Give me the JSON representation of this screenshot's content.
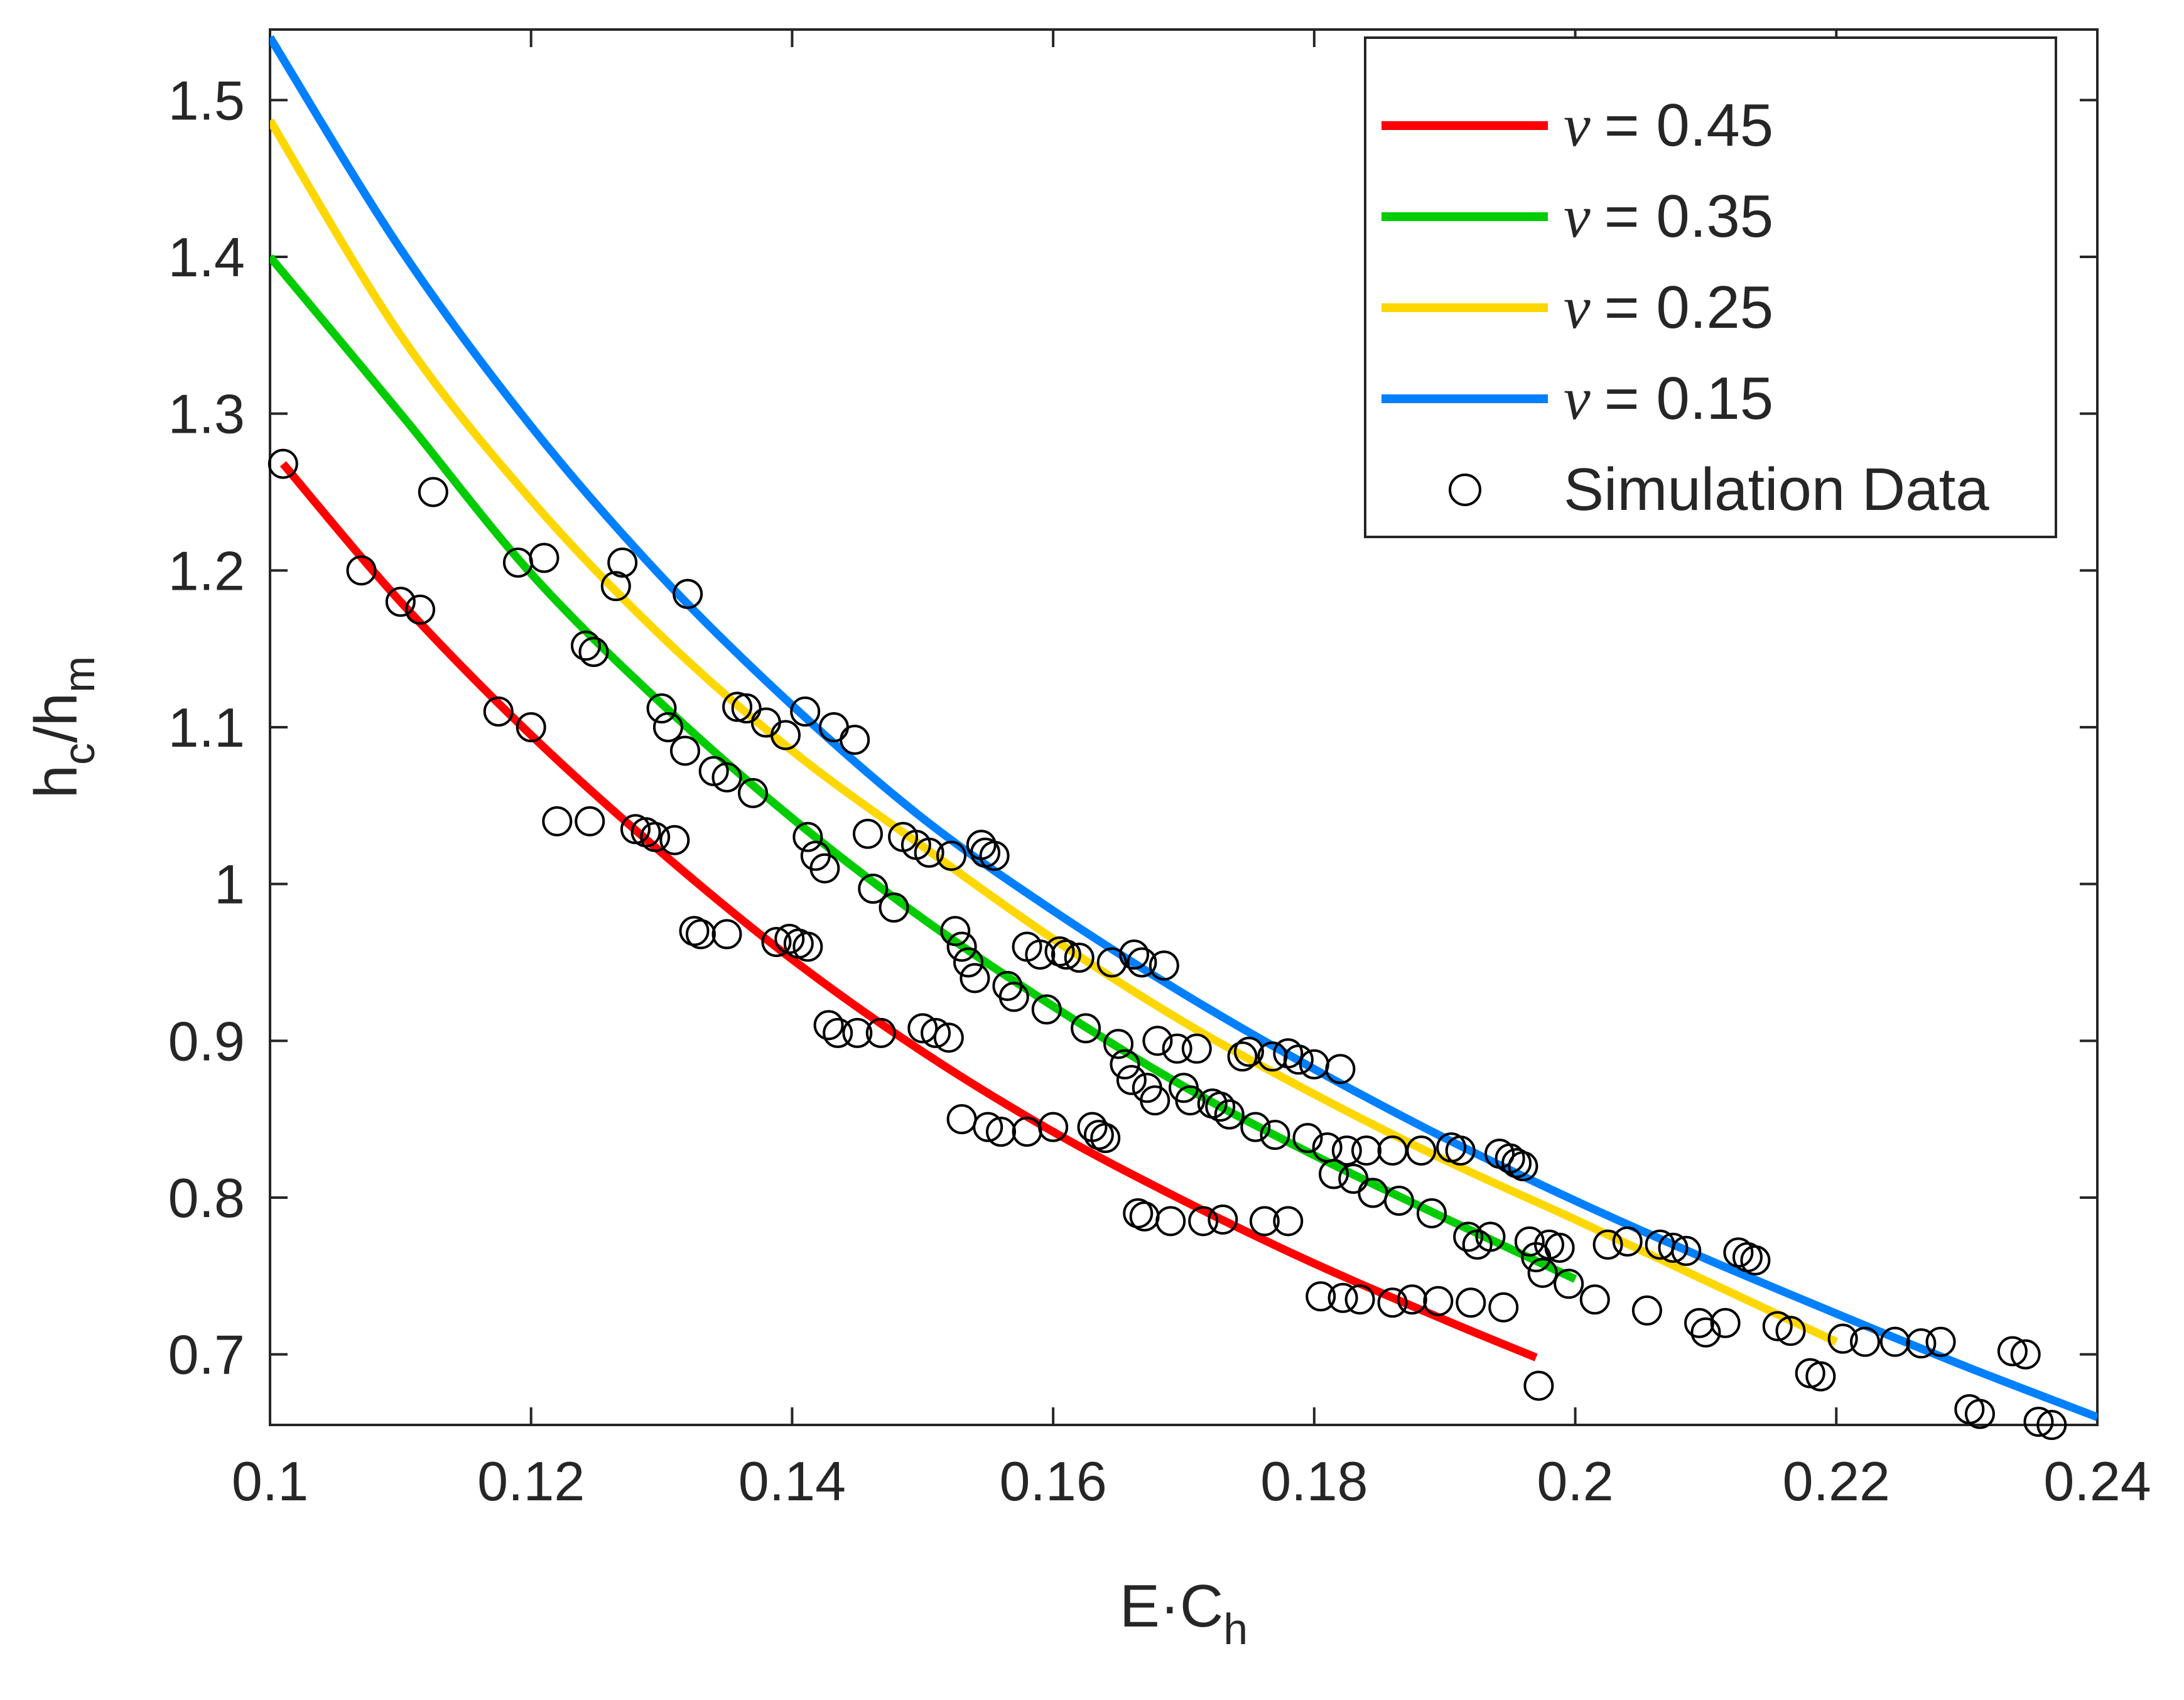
{
  "chart_data": {
    "type": "line",
    "title": "",
    "xlabel": "E·C",
    "xlabel_sub": "h",
    "ylabel_parts": [
      "h",
      "c",
      "/h",
      "m"
    ],
    "xlim": [
      0.1,
      0.24
    ],
    "ylim": [
      0.655,
      1.545
    ],
    "xticks": [
      0.1,
      0.12,
      0.14,
      0.16,
      0.18,
      0.2,
      0.22,
      0.24
    ],
    "xtick_labels": [
      "0.1",
      "0.12",
      "0.14",
      "0.16",
      "0.18",
      "0.2",
      "0.22",
      "0.24"
    ],
    "yticks": [
      0.7,
      0.8,
      0.9,
      1.0,
      1.1,
      1.2,
      1.3,
      1.4,
      1.5
    ],
    "ytick_labels": [
      "0.7",
      "0.8",
      "0.9",
      "1",
      "1.1",
      "1.2",
      "1.3",
      "1.4",
      "1.5"
    ],
    "grid": false,
    "legend_position": "top-right",
    "series": [
      {
        "name": "ν = 0.45",
        "symbol": "ν",
        "value_text": "= 0.45",
        "color": "#ff0000",
        "x": [
          0.101,
          0.11,
          0.12,
          0.13,
          0.14,
          0.15,
          0.16,
          0.17,
          0.18,
          0.19,
          0.197
        ],
        "y": [
          1.268,
          1.18,
          1.095,
          1.02,
          0.952,
          0.893,
          0.842,
          0.798,
          0.758,
          0.722,
          0.698
        ]
      },
      {
        "name": "ν = 0.35",
        "symbol": "ν",
        "value_text": "= 0.35",
        "color": "#00cc00",
        "x": [
          0.1,
          0.11,
          0.12,
          0.13,
          0.14,
          0.15,
          0.16,
          0.17,
          0.18,
          0.19,
          0.2
        ],
        "y": [
          1.4,
          1.3,
          1.198,
          1.115,
          1.042,
          0.978,
          0.922,
          0.871,
          0.827,
          0.787,
          0.748
        ]
      },
      {
        "name": "ν = 0.25",
        "symbol": "ν",
        "value_text": "= 0.25",
        "color": "#ffd700",
        "x": [
          0.1,
          0.11,
          0.12,
          0.13,
          0.14,
          0.15,
          0.16,
          0.17,
          0.18,
          0.19,
          0.2,
          0.21,
          0.22
        ],
        "y": [
          1.487,
          1.35,
          1.245,
          1.158,
          1.085,
          1.024,
          0.965,
          0.912,
          0.866,
          0.824,
          0.786,
          0.747,
          0.708
        ]
      },
      {
        "name": "ν = 0.15",
        "symbol": "ν",
        "value_text": "= 0.15",
        "color": "#0080ff",
        "x": [
          0.1,
          0.11,
          0.12,
          0.13,
          0.14,
          0.15,
          0.16,
          0.17,
          0.18,
          0.19,
          0.2,
          0.21,
          0.22,
          0.23,
          0.24
        ],
        "y": [
          1.54,
          1.405,
          1.292,
          1.196,
          1.114,
          1.042,
          0.983,
          0.93,
          0.882,
          0.838,
          0.798,
          0.761,
          0.726,
          0.692,
          0.66
        ]
      }
    ],
    "scatter": {
      "name": "Simulation Data",
      "marker": "open-circle",
      "color": "#000000",
      "points": [
        [
          0.101,
          1.268
        ],
        [
          0.107,
          1.2
        ],
        [
          0.11,
          1.18
        ],
        [
          0.1115,
          1.175
        ],
        [
          0.1125,
          1.25
        ],
        [
          0.1175,
          1.11
        ],
        [
          0.119,
          1.205
        ],
        [
          0.12,
          1.1
        ],
        [
          0.121,
          1.208
        ],
        [
          0.122,
          1.04
        ],
        [
          0.1242,
          1.152
        ],
        [
          0.1248,
          1.148
        ],
        [
          0.1245,
          1.04
        ],
        [
          0.1265,
          1.19
        ],
        [
          0.127,
          1.205
        ],
        [
          0.128,
          1.035
        ],
        [
          0.1288,
          1.033
        ],
        [
          0.1295,
          1.03
        ],
        [
          0.13,
          1.112
        ],
        [
          0.1305,
          1.1
        ],
        [
          0.131,
          1.028
        ],
        [
          0.1318,
          1.085
        ],
        [
          0.132,
          1.185
        ],
        [
          0.1325,
          0.97
        ],
        [
          0.133,
          0.968
        ],
        [
          0.134,
          1.072
        ],
        [
          0.135,
          0.968
        ],
        [
          0.135,
          1.068
        ],
        [
          0.1358,
          1.113
        ],
        [
          0.1365,
          1.112
        ],
        [
          0.137,
          1.058
        ],
        [
          0.138,
          1.103
        ],
        [
          0.1388,
          0.963
        ],
        [
          0.1395,
          1.095
        ],
        [
          0.1398,
          0.965
        ],
        [
          0.1405,
          0.962
        ],
        [
          0.141,
          1.11
        ],
        [
          0.1412,
          1.03
        ],
        [
          0.1418,
          1.018
        ],
        [
          0.1412,
          0.96
        ],
        [
          0.1425,
          1.01
        ],
        [
          0.1432,
          1.1
        ],
        [
          0.1428,
          0.91
        ],
        [
          0.1435,
          0.905
        ],
        [
          0.1448,
          1.092
        ],
        [
          0.145,
          0.905
        ],
        [
          0.1458,
          1.032
        ],
        [
          0.1462,
          0.997
        ],
        [
          0.1468,
          0.905
        ],
        [
          0.1478,
          0.985
        ],
        [
          0.1485,
          1.03
        ],
        [
          0.1495,
          1.025
        ],
        [
          0.15,
          0.908
        ],
        [
          0.1505,
          1.02
        ],
        [
          0.151,
          0.905
        ],
        [
          0.152,
          0.902
        ],
        [
          0.1522,
          1.018
        ],
        [
          0.1525,
          0.97
        ],
        [
          0.153,
          0.96
        ],
        [
          0.1535,
          0.95
        ],
        [
          0.154,
          0.94
        ],
        [
          0.1545,
          1.025
        ],
        [
          0.1548,
          1.02
        ],
        [
          0.153,
          0.85
        ],
        [
          0.155,
          0.845
        ],
        [
          0.1555,
          1.018
        ],
        [
          0.156,
          0.842
        ],
        [
          0.1565,
          0.935
        ],
        [
          0.157,
          0.928
        ],
        [
          0.158,
          0.96
        ],
        [
          0.158,
          0.842
        ],
        [
          0.159,
          0.955
        ],
        [
          0.1595,
          0.92
        ],
        [
          0.16,
          0.845
        ],
        [
          0.1605,
          0.957
        ],
        [
          0.161,
          0.955
        ],
        [
          0.162,
          0.953
        ],
        [
          0.1625,
          0.908
        ],
        [
          0.163,
          0.845
        ],
        [
          0.1635,
          0.84
        ],
        [
          0.164,
          0.838
        ],
        [
          0.1645,
          0.95
        ],
        [
          0.165,
          0.898
        ],
        [
          0.1655,
          0.885
        ],
        [
          0.166,
          0.875
        ],
        [
          0.1662,
          0.955
        ],
        [
          0.1668,
          0.95
        ],
        [
          0.1665,
          0.79
        ],
        [
          0.167,
          0.788
        ],
        [
          0.1672,
          0.87
        ],
        [
          0.1678,
          0.862
        ],
        [
          0.168,
          0.9
        ],
        [
          0.1685,
          0.948
        ],
        [
          0.169,
          0.785
        ],
        [
          0.1695,
          0.895
        ],
        [
          0.17,
          0.87
        ],
        [
          0.1705,
          0.862
        ],
        [
          0.171,
          0.895
        ],
        [
          0.1715,
          0.785
        ],
        [
          0.1722,
          0.86
        ],
        [
          0.1728,
          0.858
        ],
        [
          0.173,
          0.786
        ],
        [
          0.1735,
          0.853
        ],
        [
          0.1745,
          0.89
        ],
        [
          0.175,
          0.893
        ],
        [
          0.1755,
          0.845
        ],
        [
          0.1762,
          0.785
        ],
        [
          0.1768,
          0.89
        ],
        [
          0.177,
          0.84
        ],
        [
          0.178,
          0.785
        ],
        [
          0.178,
          0.892
        ],
        [
          0.1788,
          0.888
        ],
        [
          0.1795,
          0.838
        ],
        [
          0.18,
          0.885
        ],
        [
          0.1805,
          0.737
        ],
        [
          0.181,
          0.832
        ],
        [
          0.1815,
          0.815
        ],
        [
          0.182,
          0.882
        ],
        [
          0.1822,
          0.736
        ],
        [
          0.1825,
          0.83
        ],
        [
          0.183,
          0.812
        ],
        [
          0.1835,
          0.735
        ],
        [
          0.184,
          0.83
        ],
        [
          0.1845,
          0.803
        ],
        [
          0.186,
          0.733
        ],
        [
          0.186,
          0.83
        ],
        [
          0.1865,
          0.798
        ],
        [
          0.1875,
          0.735
        ],
        [
          0.1882,
          0.83
        ],
        [
          0.189,
          0.79
        ],
        [
          0.1895,
          0.734
        ],
        [
          0.1905,
          0.832
        ],
        [
          0.1912,
          0.83
        ],
        [
          0.1918,
          0.775
        ],
        [
          0.192,
          0.733
        ],
        [
          0.1925,
          0.77
        ],
        [
          0.1935,
          0.775
        ],
        [
          0.1942,
          0.828
        ],
        [
          0.1945,
          0.73
        ],
        [
          0.195,
          0.825
        ],
        [
          0.1955,
          0.822
        ],
        [
          0.196,
          0.82
        ],
        [
          0.1965,
          0.772
        ],
        [
          0.197,
          0.762
        ],
        [
          0.1972,
          0.68
        ],
        [
          0.1975,
          0.752
        ],
        [
          0.198,
          0.77
        ],
        [
          0.1988,
          0.768
        ],
        [
          0.1995,
          0.745
        ],
        [
          0.2015,
          0.735
        ],
        [
          0.2025,
          0.77
        ],
        [
          0.204,
          0.772
        ],
        [
          0.2055,
          0.728
        ],
        [
          0.2065,
          0.77
        ],
        [
          0.2075,
          0.768
        ],
        [
          0.2085,
          0.766
        ],
        [
          0.2095,
          0.72
        ],
        [
          0.21,
          0.714
        ],
        [
          0.2115,
          0.72
        ],
        [
          0.2125,
          0.765
        ],
        [
          0.2132,
          0.762
        ],
        [
          0.2138,
          0.76
        ],
        [
          0.2155,
          0.718
        ],
        [
          0.2165,
          0.715
        ],
        [
          0.218,
          0.688
        ],
        [
          0.2188,
          0.686
        ],
        [
          0.2205,
          0.71
        ],
        [
          0.2222,
          0.708
        ],
        [
          0.2245,
          0.708
        ],
        [
          0.2265,
          0.707
        ],
        [
          0.228,
          0.708
        ],
        [
          0.2302,
          0.665
        ],
        [
          0.231,
          0.662
        ],
        [
          0.2335,
          0.702
        ],
        [
          0.2345,
          0.7
        ],
        [
          0.2355,
          0.657
        ],
        [
          0.2365,
          0.655
        ]
      ]
    }
  }
}
